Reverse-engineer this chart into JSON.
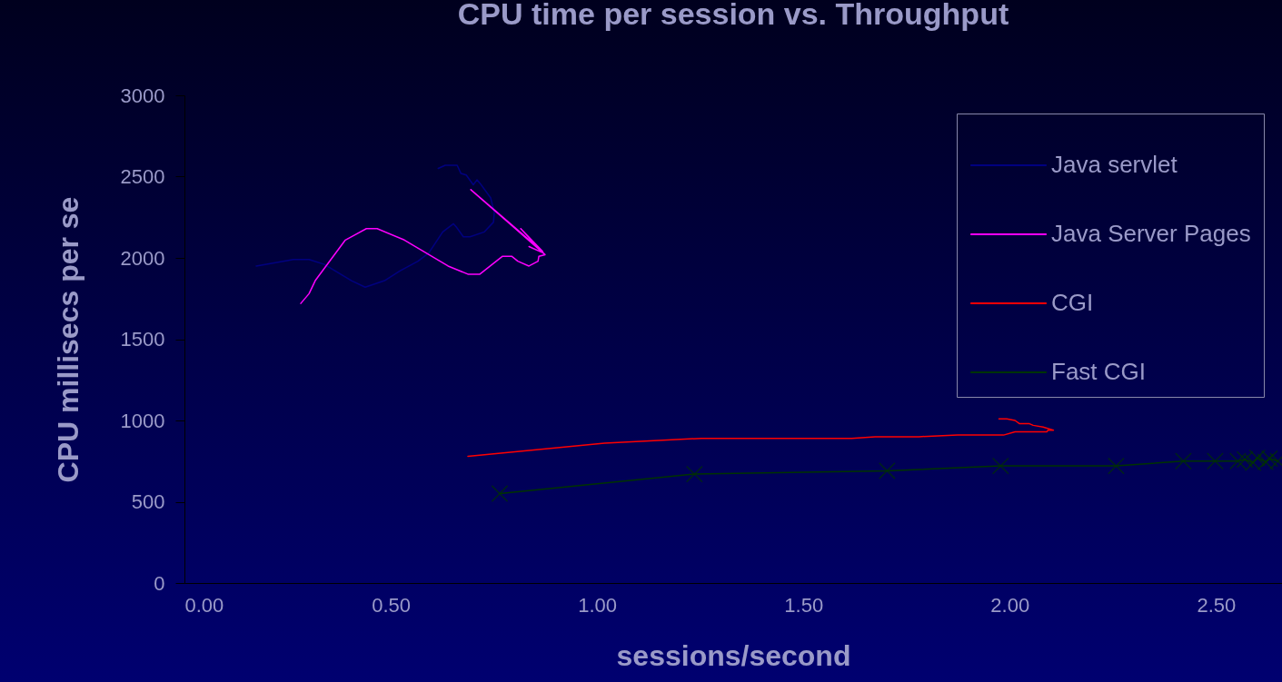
{
  "chart_data": {
    "type": "line",
    "title": "CPU time per session vs. Throughput",
    "xlabel": "sessions/second",
    "ylabel": "CPU millisecs per se",
    "xlim": [
      0,
      2.66
    ],
    "xticks": [
      {
        "value": 0,
        "label": "0.00"
      },
      {
        "value": 0.5,
        "label": "0.50"
      },
      {
        "value": 1,
        "label": "1.00"
      },
      {
        "value": 1.5,
        "label": "1.50"
      },
      {
        "value": 2,
        "label": "2.00"
      },
      {
        "value": 2.5,
        "label": "2.50"
      }
    ],
    "ylim": [
      0,
      3000
    ],
    "yticks": [
      0,
      500,
      1000,
      1500,
      2000,
      2500,
      3000
    ],
    "legend": "top right",
    "series": [
      {
        "name": "Java servlet",
        "color": "#000080",
        "x": [
          0.174,
          0.264,
          0.302,
          0.339,
          0.405,
          0.438,
          0.485,
          0.522,
          0.566,
          0.592,
          0.626,
          0.652,
          0.659,
          0.676,
          0.692,
          0.727,
          0.749,
          0.751,
          0.742,
          0.716,
          0.709,
          0.7,
          0.683,
          0.67,
          0.661,
          0.648,
          0.632,
          0.615
        ],
        "values": [
          1950,
          1990,
          1990,
          1960,
          1860,
          1820,
          1860,
          1920,
          1980,
          2030,
          2160,
          2210,
          2190,
          2130,
          2130,
          2160,
          2220,
          2280,
          2370,
          2460,
          2480,
          2450,
          2510,
          2520,
          2570,
          2570,
          2570,
          2550
        ]
      },
      {
        "name": "Java Server Pages",
        "color": "#ff00ff",
        "x": [
          0.282,
          0.302,
          0.317,
          0.39,
          0.441,
          0.467,
          0.533,
          0.639,
          0.687,
          0.716,
          0.771,
          0.793,
          0.808,
          0.835,
          0.857,
          0.859,
          0.874,
          0.694,
          0.868,
          0.815,
          0.87,
          0.835
        ],
        "values": [
          1720,
          1780,
          1860,
          2110,
          2180,
          2180,
          2110,
          1950,
          1900,
          1900,
          2010,
          2010,
          1980,
          1950,
          1980,
          2010,
          2020,
          2420,
          2040,
          2180,
          2030,
          2070
        ]
      },
      {
        "name": "CGI",
        "color": "#ff0000",
        "x": [
          0.687,
          1.018,
          1.253,
          1.617,
          1.674,
          1.78,
          1.874,
          1.985,
          2.013,
          2.09,
          2.093,
          2.106,
          2.081,
          2.057,
          2.048,
          2.024,
          2.013,
          1.993,
          1.974
        ],
        "values": [
          780,
          860,
          890,
          890,
          900,
          900,
          910,
          910,
          930,
          930,
          940,
          940,
          960,
          970,
          980,
          980,
          1000,
          1010,
          1010
        ]
      },
      {
        "name": "Fast CGI",
        "color": "#003300",
        "marker": "cross",
        "x": [
          0.764,
          1.236,
          1.703,
          1.978,
          2.258,
          2.421,
          2.498,
          2.553,
          2.57,
          2.59,
          2.6,
          2.62,
          2.63,
          2.65
        ],
        "values": [
          550,
          670,
          690,
          720,
          720,
          750,
          750,
          750,
          760,
          740,
          770,
          745,
          765,
          750
        ]
      }
    ]
  }
}
